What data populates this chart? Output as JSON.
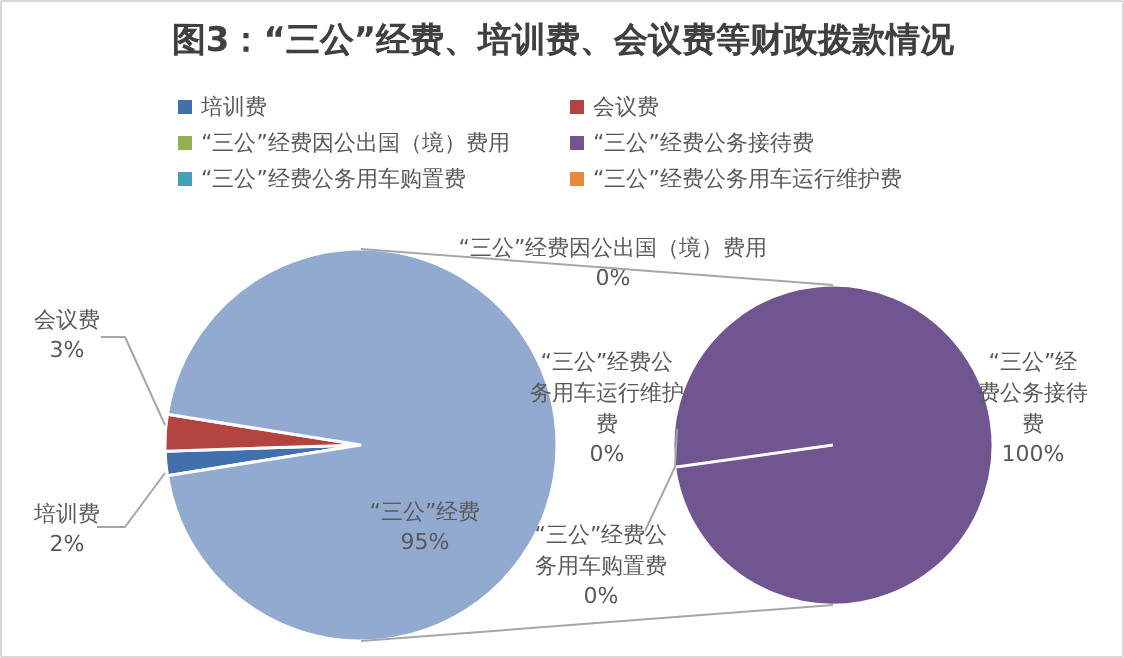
{
  "chart_data": [
    {
      "type": "pie",
      "title": "图3：“三公”经费、培训费、会议费等财政拨款情况",
      "categories": [
        "培训费",
        "会议费",
        "“三公”经费"
      ],
      "values": [
        2,
        3,
        95
      ],
      "value_labels": [
        "2%",
        "3%",
        "95%"
      ],
      "colors": [
        "#4170ad",
        "#b2433f",
        "#92aad0"
      ],
      "legend": "top"
    },
    {
      "type": "pie",
      "categories": [
        "“三公”经费因公出国（境）费用",
        "“三公”经费公务接待费",
        "“三公”经费公务用车购置费",
        "“三公”经费公务用车运行维护费"
      ],
      "values": [
        0,
        100,
        0,
        0
      ],
      "value_labels": [
        "“三公”经费因公出国（境）费用\n0%",
        "“三公”经费公务接待费\n100%",
        "“三公”经费公务用车购置费\n0%",
        "“三公”经费公务用车运行维护费\n0%"
      ],
      "colors": [
        "#8fb050",
        "#715590",
        "#43a0b8",
        "#e98838"
      ],
      "legend": "top"
    }
  ]
}
